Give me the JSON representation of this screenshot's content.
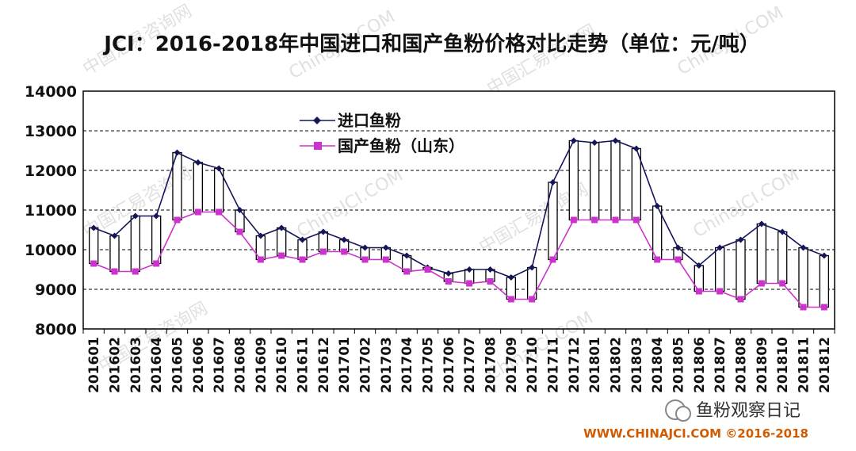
{
  "title": "JCI：2016-2018年中国进口和国产鱼粉价格对比走势（单位：元/吨）",
  "footer": "WWW.CHINAJCI.COM ©2016-2018",
  "badge": "鱼粉观察日记",
  "watermark_texts": [
    "中国汇易咨询网",
    "ChinaJCI.COM"
  ],
  "colors": {
    "import_series": "#15155a",
    "domestic_series": "#cc33cc",
    "fill_between": "#ffffff",
    "grid": "#000000"
  },
  "chart_data": {
    "type": "line",
    "title": "JCI：2016-2018年中国进口和国产鱼粉价格对比走势（单位：元/吨）",
    "xlabel": "",
    "ylabel": "",
    "ylim": [
      8000,
      14000
    ],
    "yticks": [
      8000,
      9000,
      10000,
      11000,
      12000,
      13000,
      14000
    ],
    "grid": true,
    "legend_position": "top-left",
    "categories": [
      "201601",
      "201602",
      "201603",
      "201604",
      "201605",
      "201606",
      "201607",
      "201608",
      "201609",
      "201610",
      "201611",
      "201612",
      "201701",
      "201702",
      "201703",
      "201704",
      "201705",
      "201706",
      "201707",
      "201708",
      "201709",
      "201710",
      "201711",
      "201712",
      "201801",
      "201802",
      "201803",
      "201804",
      "201805",
      "201806",
      "201807",
      "201808",
      "201809",
      "201810",
      "201811",
      "201812"
    ],
    "series": [
      {
        "name": "进口鱼粉",
        "marker": "diamond",
        "values": [
          10550,
          10350,
          10850,
          10850,
          12450,
          12200,
          12050,
          11000,
          10350,
          10550,
          10250,
          10450,
          10250,
          10050,
          10050,
          9850,
          9550,
          9400,
          9500,
          9500,
          9300,
          9550,
          11700,
          12750,
          12700,
          12750,
          12550,
          11100,
          10050,
          9600,
          10050,
          10250,
          10650,
          10450,
          10050,
          9850
        ]
      },
      {
        "name": "国产鱼粉（山东）",
        "marker": "square",
        "values": [
          9650,
          9450,
          9450,
          9650,
          10750,
          10950,
          10950,
          10450,
          9750,
          9850,
          9750,
          9950,
          9950,
          9750,
          9750,
          9450,
          9500,
          9200,
          9150,
          9200,
          8750,
          8750,
          9750,
          10750,
          10750,
          10750,
          10750,
          9750,
          9750,
          8950,
          8950,
          8750,
          9150,
          9150,
          8550,
          8550
        ]
      }
    ]
  }
}
